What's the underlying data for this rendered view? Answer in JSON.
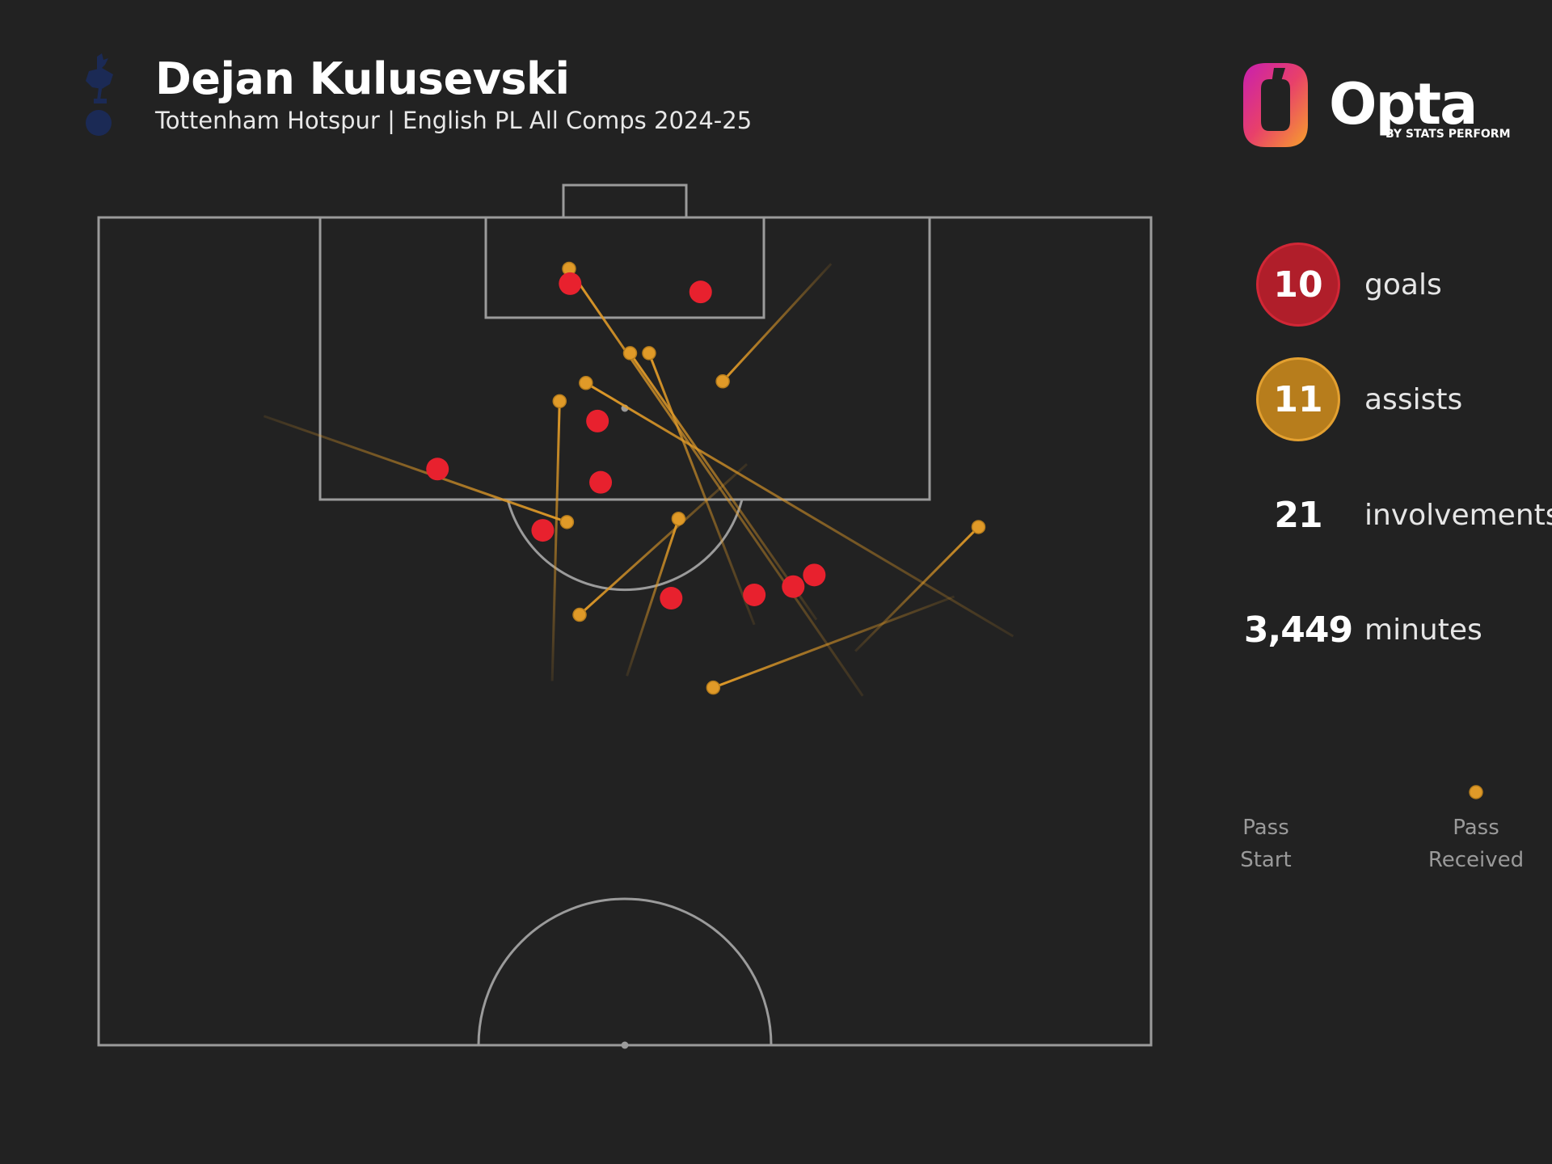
{
  "header": {
    "title": "Dejan Kulusevski",
    "subtitle": "Tottenham Hotspur | English PL All Comps 2024-25",
    "crest_icon": "tottenham-cockerel-icon"
  },
  "brand": {
    "name": "Opta",
    "byline": "BY STATS PERFORM",
    "mark_icon": "opta-logo-icon",
    "gradient_colors": [
      "#e0239b",
      "#f0782a",
      "#f7a12b"
    ]
  },
  "stats": [
    {
      "value": "10",
      "label": "goals",
      "style": "badge",
      "fill": "#b01e2a",
      "border": "#d12736"
    },
    {
      "value": "11",
      "label": "assists",
      "style": "badge",
      "fill": "#b77d1c",
      "border": "#e3a030"
    },
    {
      "value": "21",
      "label": "involvements",
      "style": "plain"
    },
    {
      "value": "3,449",
      "label": "minutes",
      "style": "plain"
    }
  ],
  "legend": {
    "start_label": "Pass\nStart",
    "end_label": "Pass\nReceived",
    "line_color": "#e09a28"
  },
  "colors": {
    "background": "#222222",
    "pitch_lines": "#9b9b9b",
    "goal": "#e8212e",
    "assist": "#e09a28"
  },
  "chart_data": {
    "type": "scatter",
    "pitch": {
      "orientation": "vertical",
      "view": "attacking-half",
      "x_range": [
        0,
        100
      ],
      "y_range": [
        50,
        100
      ],
      "goal_at": "top"
    },
    "goals": [
      {
        "x": 44.8,
        "y": 96.0
      },
      {
        "x": 57.2,
        "y": 95.5
      },
      {
        "x": 47.4,
        "y": 87.7
      },
      {
        "x": 32.2,
        "y": 84.8
      },
      {
        "x": 47.7,
        "y": 84.0
      },
      {
        "x": 42.2,
        "y": 81.1
      },
      {
        "x": 68.0,
        "y": 78.4
      },
      {
        "x": 66.0,
        "y": 77.7
      },
      {
        "x": 62.3,
        "y": 77.2
      },
      {
        "x": 54.4,
        "y": 77.0
      }
    ],
    "assists": [
      {
        "start": {
          "x": 15.7,
          "y": 88.0
        },
        "end": {
          "x": 44.5,
          "y": 81.6
        }
      },
      {
        "start": {
          "x": 69.6,
          "y": 97.2
        },
        "end": {
          "x": 59.3,
          "y": 90.1
        }
      },
      {
        "start": {
          "x": 43.1,
          "y": 72.0
        },
        "end": {
          "x": 43.8,
          "y": 88.9
        }
      },
      {
        "start": {
          "x": 50.2,
          "y": 72.3
        },
        "end": {
          "x": 55.1,
          "y": 81.8
        }
      },
      {
        "start": {
          "x": 62.3,
          "y": 75.4
        },
        "end": {
          "x": 52.3,
          "y": 91.8
        }
      },
      {
        "start": {
          "x": 86.9,
          "y": 74.7
        },
        "end": {
          "x": 46.3,
          "y": 90.0
        }
      },
      {
        "start": {
          "x": 72.6,
          "y": 71.1
        },
        "end": {
          "x": 44.7,
          "y": 96.9
        }
      },
      {
        "start": {
          "x": 68.2,
          "y": 75.7
        },
        "end": {
          "x": 50.5,
          "y": 91.8
        }
      },
      {
        "start": {
          "x": 61.6,
          "y": 85.1
        },
        "end": {
          "x": 45.7,
          "y": 76.0
        }
      },
      {
        "start": {
          "x": 71.9,
          "y": 73.8
        },
        "end": {
          "x": 83.6,
          "y": 81.3
        }
      },
      {
        "start": {
          "x": 81.3,
          "y": 77.1
        },
        "end": {
          "x": 58.4,
          "y": 71.6
        }
      }
    ]
  }
}
